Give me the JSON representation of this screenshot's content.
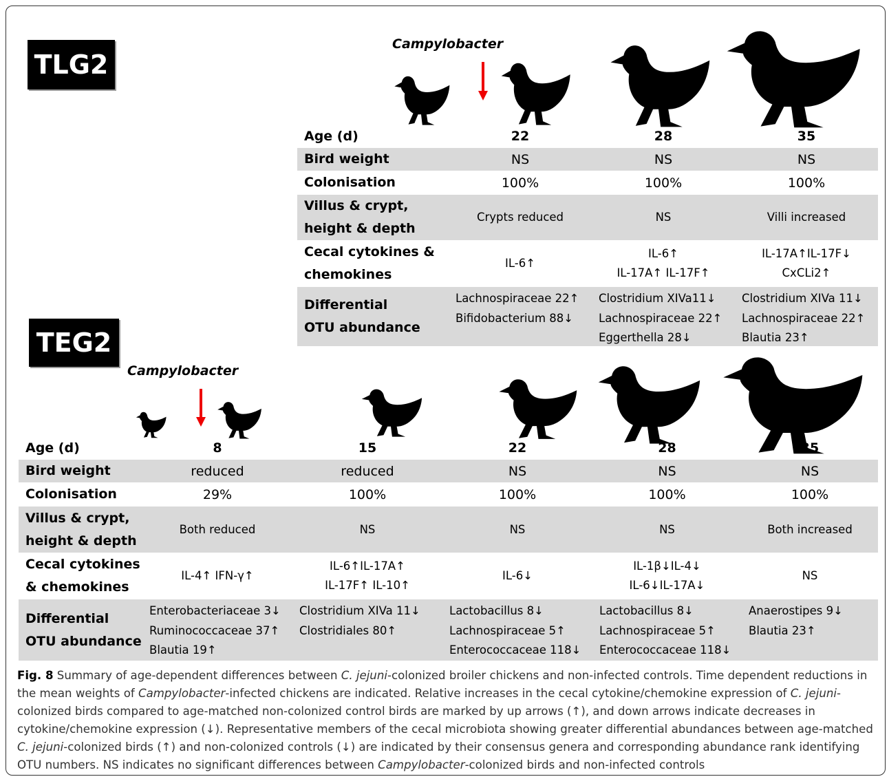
{
  "tlg2": {
    "label": "TLG2",
    "infection_label": "Campylobacter",
    "table": {
      "rows": [
        {
          "label": [
            "Age (d)"
          ],
          "cells": [
            [
              "22"
            ],
            [
              "28"
            ],
            [
              "35"
            ]
          ]
        },
        {
          "label": [
            "Bird weight"
          ],
          "cells": [
            [
              "NS"
            ],
            [
              "NS"
            ],
            [
              "NS"
            ]
          ]
        },
        {
          "label": [
            "Colonisation"
          ],
          "cells": [
            [
              "100%"
            ],
            [
              "100%"
            ],
            [
              "100%"
            ]
          ]
        },
        {
          "label": [
            "Villus & crypt,",
            "height & depth"
          ],
          "cells": [
            [
              "Crypts reduced"
            ],
            [
              "NS"
            ],
            [
              "Villi increased"
            ]
          ]
        },
        {
          "label": [
            "Cecal cytokines &",
            "chemokines"
          ],
          "cells": [
            [
              "IL-6↑"
            ],
            [
              "IL-6↑",
              "IL-17A↑ IL-17F↑"
            ],
            [
              "IL-17A↑IL-17F↓",
              "CxCLi2↑"
            ]
          ]
        },
        {
          "label": [
            "Differential",
            "OTU abundance"
          ],
          "cells": [
            [
              "Lachnospiraceae 22↑",
              "Bifidobacterium 88↓"
            ],
            [
              "Clostridium XIVa11↓",
              "Lachnospiraceae 22↑",
              "Eggerthella 28↓"
            ],
            [
              "Clostridium XIVa 11↓",
              "Lachnospiraceae 22↑",
              "Blautia 23↑"
            ]
          ]
        }
      ]
    }
  },
  "teg2": {
    "label": "TEG2",
    "infection_label": "Campylobacter",
    "table": {
      "rows": [
        {
          "label": [
            "Age (d)"
          ],
          "cells": [
            [
              "8"
            ],
            [
              "15"
            ],
            [
              "22"
            ],
            [
              "28"
            ],
            [
              "35"
            ]
          ]
        },
        {
          "label": [
            "Bird weight"
          ],
          "cells": [
            [
              "reduced"
            ],
            [
              "reduced"
            ],
            [
              "NS"
            ],
            [
              "NS"
            ],
            [
              "NS"
            ]
          ]
        },
        {
          "label": [
            "Colonisation"
          ],
          "cells": [
            [
              "29%"
            ],
            [
              "100%"
            ],
            [
              "100%"
            ],
            [
              "100%"
            ],
            [
              "100%"
            ]
          ]
        },
        {
          "label": [
            "Villus & crypt,",
            "height & depth"
          ],
          "cells": [
            [
              "Both reduced"
            ],
            [
              "NS"
            ],
            [
              "NS"
            ],
            [
              "NS"
            ],
            [
              "Both increased"
            ]
          ]
        },
        {
          "label": [
            "Cecal cytokines",
            "& chemokines"
          ],
          "cells": [
            [
              "IL-4↑ IFN-γ↑"
            ],
            [
              "IL-6↑IL-17A↑",
              "IL-17F↑ IL-10↑"
            ],
            [
              "IL-6↓"
            ],
            [
              "IL-1β↓IL-4↓",
              "IL-6↓IL-17A↓"
            ],
            [
              "NS"
            ]
          ]
        },
        {
          "label": [
            "Differential",
            "OTU abundance"
          ],
          "cells": [
            [
              "Enterobacteriaceae 3↓",
              "Ruminococcaceae 37↑",
              "Blautia 19↑"
            ],
            [
              "Clostridium XIVa 11↓",
              "Clostridiales 80↑"
            ],
            [
              "Lactobacillus 8↓",
              "Lachnospiraceae 5↑",
              "Enterococcaceae 118↓"
            ],
            [
              "Lactobacillus 8↓",
              "Lachnospiraceae 5↑",
              "Enterococcaceae 118↓"
            ],
            [
              "Anaerostipes 9↓",
              "Blautia 23↑"
            ]
          ]
        }
      ]
    }
  },
  "caption": {
    "label": "Fig. 8",
    "runs": [
      " Summary of age-dependent differences between ",
      "C. jejuni",
      "-colonized broiler chickens and non-infected controls. Time dependent reductions in the mean weights of ",
      "Campylobacter",
      "-infected chickens are indicated. Relative increases in the cecal cytokine/chemokine expression of ",
      "C. jejuni",
      "-colonized birds compared to age-matched non-colonized control birds are marked by up arrows (↑), and down arrows indicate decreases in cytokine/chemokine expression (↓). Representative members of the cecal microbiota showing greater differential abundances between age-matched ",
      "C. jejuni",
      "-colonized birds (↑) and non-colonized controls (↓) are indicated by their consensus genera and corresponding abundance rank identifying OTU numbers. NS indicates no significant differences between ",
      "Campylobacter",
      "-colonized birds and non-infected controls"
    ]
  }
}
